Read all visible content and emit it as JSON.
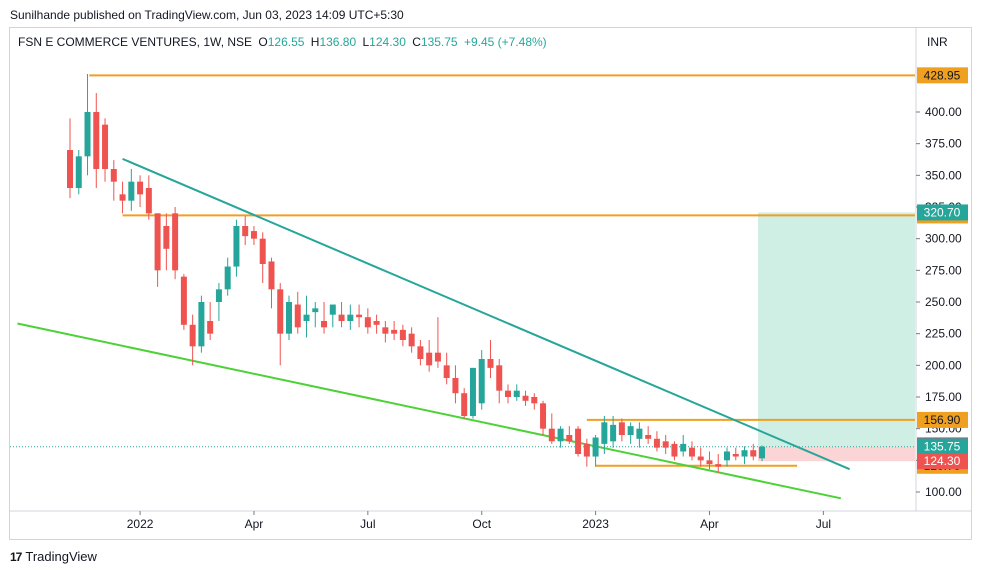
{
  "header": {
    "published_line": "Sunilhande published on TradingView.com, Jun 03, 2023 14:09 UTC+5:30"
  },
  "legend": {
    "symbol": "FSN E COMMERCE VENTURES, 1W, NSE",
    "open_label": "O",
    "open": "126.55",
    "high_label": "H",
    "high": "136.80",
    "low_label": "L",
    "low": "124.30",
    "close_label": "C",
    "close": "135.75",
    "change": "+9.45 (+7.48%)"
  },
  "currency": "INR",
  "footer": {
    "brand": "TradingView",
    "logo_text": "17"
  },
  "colors": {
    "up": "#26a69a",
    "down": "#ef5350",
    "level": "#f0a020",
    "downtrend": "#26a69a",
    "support": "#4cd137",
    "target_zone": "#cfeee4",
    "stop_zone": "#fbd5d5",
    "last_price": "#26a69a",
    "hline_gray": "#787b86"
  },
  "chart_data": {
    "type": "candlestick",
    "timeframe": "1W",
    "exchange": "NSE",
    "ylim": [
      75,
      460
    ],
    "y_ticks": [
      "100.00",
      "125.00",
      "150.00",
      "175.00",
      "200.00",
      "225.00",
      "250.00",
      "275.00",
      "300.00",
      "325.00",
      "350.00",
      "375.00",
      "400.00"
    ],
    "y_tick_values": [
      100,
      125,
      150,
      175,
      200,
      225,
      250,
      275,
      300,
      325,
      350,
      375,
      400
    ],
    "x_ticks": [
      "2022",
      "Apr",
      "Jul",
      "Oct",
      "2023",
      "Apr",
      "Jul"
    ],
    "x_tick_weeks": [
      8,
      21,
      34,
      47,
      60,
      73,
      86
    ],
    "candles_ohlc": [
      [
        370,
        395,
        332,
        340
      ],
      [
        340,
        370,
        335,
        365
      ],
      [
        365,
        430,
        350,
        400
      ],
      [
        400,
        415,
        340,
        355
      ],
      [
        390,
        395,
        345,
        355
      ],
      [
        355,
        362,
        330,
        345
      ],
      [
        335,
        345,
        320,
        330
      ],
      [
        330,
        355,
        322,
        345
      ],
      [
        345,
        350,
        325,
        335
      ],
      [
        340,
        350,
        315,
        320
      ],
      [
        320,
        320,
        262,
        275
      ],
      [
        310,
        320,
        275,
        292
      ],
      [
        320,
        325,
        268,
        275
      ],
      [
        270,
        272,
        228,
        232
      ],
      [
        232,
        240,
        200,
        215
      ],
      [
        215,
        255,
        210,
        250
      ],
      [
        235,
        250,
        220,
        225
      ],
      [
        250,
        265,
        235,
        260
      ],
      [
        260,
        285,
        255,
        278
      ],
      [
        278,
        315,
        270,
        310
      ],
      [
        310,
        318,
        295,
        302
      ],
      [
        306,
        310,
        295,
        300
      ],
      [
        300,
        305,
        265,
        280
      ],
      [
        282,
        285,
        245,
        260
      ],
      [
        260,
        265,
        200,
        225
      ],
      [
        225,
        255,
        220,
        250
      ],
      [
        248,
        258,
        225,
        230
      ],
      [
        235,
        255,
        222,
        240
      ],
      [
        242,
        250,
        230,
        245
      ],
      [
        235,
        250,
        225,
        230
      ],
      [
        240,
        248,
        230,
        248
      ],
      [
        240,
        250,
        230,
        235
      ],
      [
        235,
        248,
        228,
        240
      ],
      [
        240,
        248,
        230,
        238
      ],
      [
        238,
        245,
        225,
        230
      ],
      [
        235,
        240,
        225,
        232
      ],
      [
        230,
        235,
        218,
        225
      ],
      [
        228,
        235,
        220,
        225
      ],
      [
        228,
        232,
        215,
        220
      ],
      [
        225,
        230,
        210,
        215
      ],
      [
        215,
        220,
        200,
        205
      ],
      [
        210,
        220,
        195,
        200
      ],
      [
        210,
        238,
        198,
        203
      ],
      [
        200,
        210,
        185,
        190
      ],
      [
        190,
        200,
        170,
        178
      ],
      [
        178,
        182,
        158,
        160
      ],
      [
        160,
        198,
        158,
        198
      ],
      [
        170,
        212,
        165,
        205
      ],
      [
        205,
        220,
        190,
        198
      ],
      [
        200,
        205,
        170,
        180
      ],
      [
        180,
        185,
        170,
        175
      ],
      [
        175,
        185,
        172,
        180
      ],
      [
        176,
        180,
        168,
        172
      ],
      [
        175,
        178,
        165,
        170
      ],
      [
        170,
        172,
        145,
        150
      ],
      [
        150,
        162,
        138,
        140
      ],
      [
        140,
        152,
        135,
        150
      ],
      [
        145,
        152,
        138,
        140
      ],
      [
        150,
        152,
        128,
        130
      ],
      [
        138,
        142,
        120,
        128
      ],
      [
        128,
        145,
        120,
        143
      ],
      [
        138,
        160,
        130,
        155
      ],
      [
        140,
        160,
        135,
        153
      ],
      [
        155,
        158,
        140,
        145
      ],
      [
        145,
        155,
        138,
        152
      ],
      [
        142,
        155,
        135,
        150
      ],
      [
        145,
        152,
        138,
        142
      ],
      [
        142,
        148,
        132,
        135
      ],
      [
        140,
        145,
        130,
        135
      ],
      [
        138,
        140,
        125,
        128
      ],
      [
        132,
        145,
        128,
        138
      ],
      [
        135,
        140,
        125,
        128
      ],
      [
        128,
        135,
        120,
        125
      ],
      [
        125,
        132,
        118,
        122
      ],
      [
        122,
        130,
        115,
        120
      ],
      [
        125,
        135,
        120,
        132
      ],
      [
        130,
        135,
        125,
        128
      ],
      [
        128,
        136,
        122,
        133
      ],
      [
        133,
        138,
        125,
        128
      ],
      [
        126.55,
        136.8,
        124.3,
        135.75
      ]
    ],
    "levels": [
      {
        "label": "428.95",
        "value": 428.95
      },
      {
        "label": "318.35",
        "value": 318.35
      },
      {
        "label": "156.90",
        "value": 156.9
      },
      {
        "label": "120.70",
        "value": 120.7
      }
    ],
    "price_labels": [
      {
        "label": "320.70",
        "value": 320.7,
        "kind": "target"
      },
      {
        "label": "136.80",
        "value": 136.8,
        "kind": "high"
      },
      {
        "label": "135.75",
        "value": 135.75,
        "kind": "last"
      },
      {
        "label": "124.30",
        "value": 124.3,
        "kind": "stop"
      }
    ],
    "downtrend_line": {
      "from": [
        6,
        363
      ],
      "to": [
        89,
        118
      ]
    },
    "support_line": {
      "from": [
        -6,
        233
      ],
      "to": [
        88,
        95
      ]
    },
    "position": {
      "entry": 135.75,
      "target": 320.7,
      "stop": 124.3
    }
  }
}
